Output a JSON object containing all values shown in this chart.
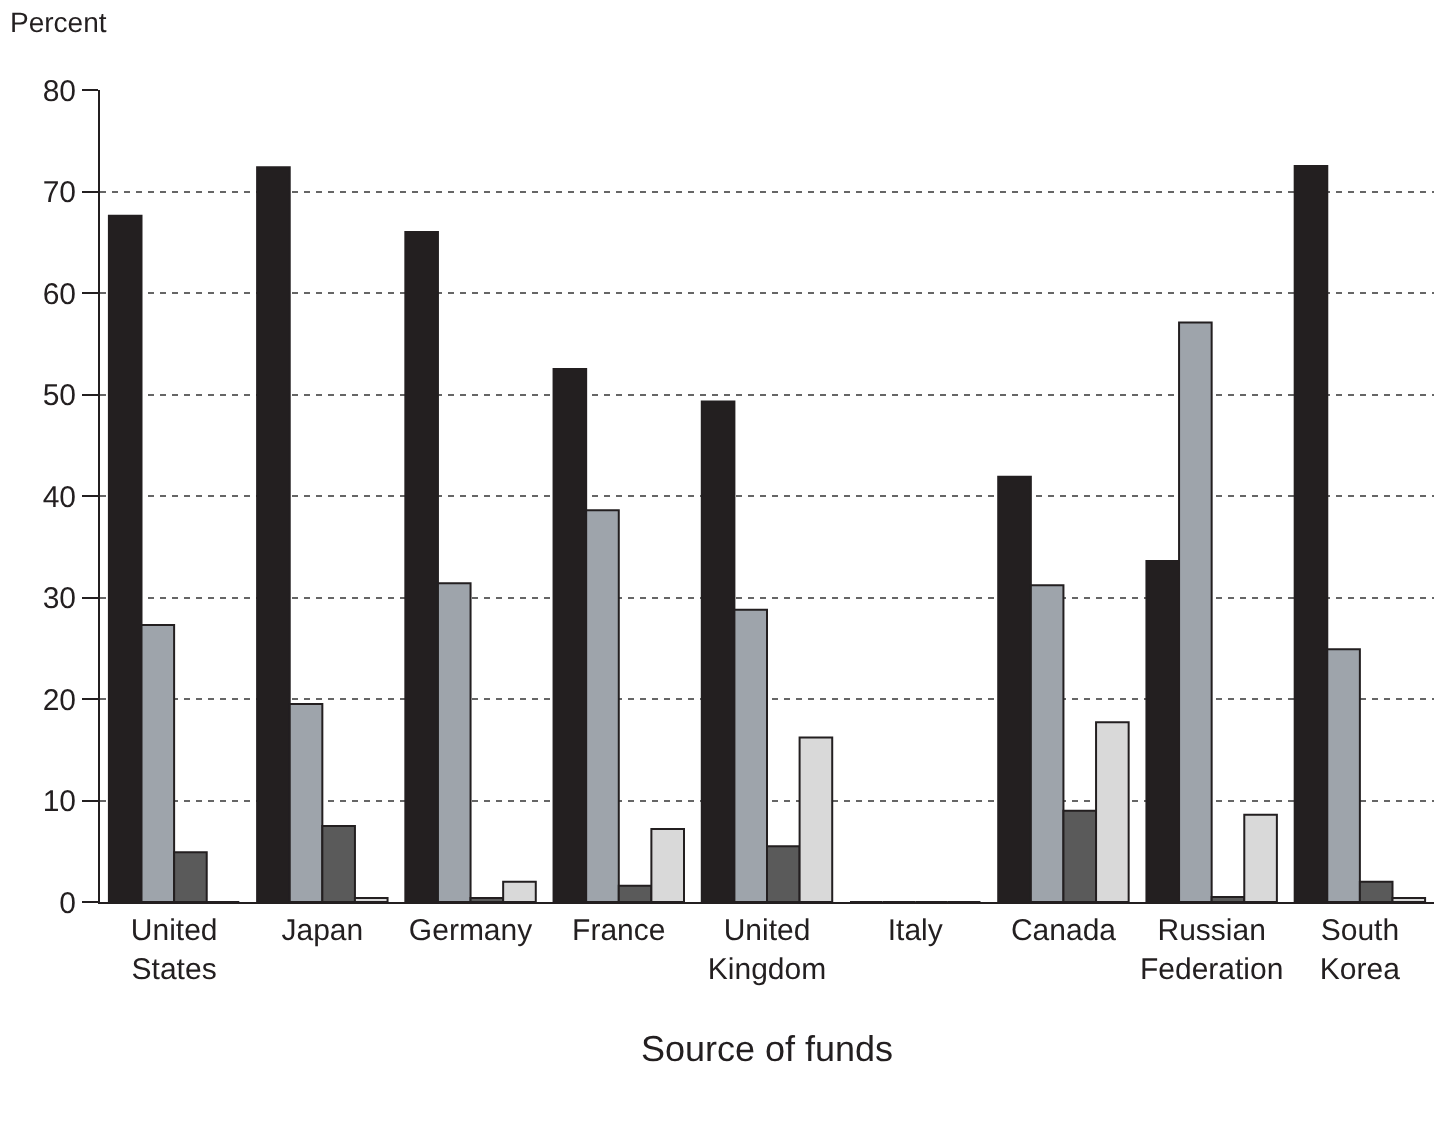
{
  "chart_data": {
    "type": "bar",
    "ylabel": "Percent",
    "xlabel": "Source of funds",
    "categories": [
      "United States",
      "Japan",
      "Germany",
      "France",
      "United Kingdom",
      "Italy",
      "Canada",
      "Russian Federation",
      "South Korea"
    ],
    "series": [
      {
        "color": "#231f20",
        "values": [
          67.6,
          72.4,
          66.0,
          52.5,
          49.3,
          0,
          41.9,
          33.6,
          72.5
        ]
      },
      {
        "color": "#9ea4ab",
        "values": [
          27.3,
          19.5,
          31.4,
          38.6,
          28.8,
          0,
          31.2,
          57.1,
          24.9
        ]
      },
      {
        "color": "#5a5a5a",
        "values": [
          4.9,
          7.5,
          0.4,
          1.6,
          5.5,
          0,
          9.0,
          0.5,
          2.0
        ]
      },
      {
        "color": "#d9d9d9",
        "values": [
          0,
          0.4,
          2.0,
          7.2,
          16.2,
          0,
          17.7,
          8.6,
          0.4
        ]
      }
    ],
    "ylim": [
      0,
      80
    ],
    "yticks": [
      0,
      10,
      20,
      30,
      40,
      50,
      60,
      70,
      80
    ],
    "grid": "y"
  }
}
